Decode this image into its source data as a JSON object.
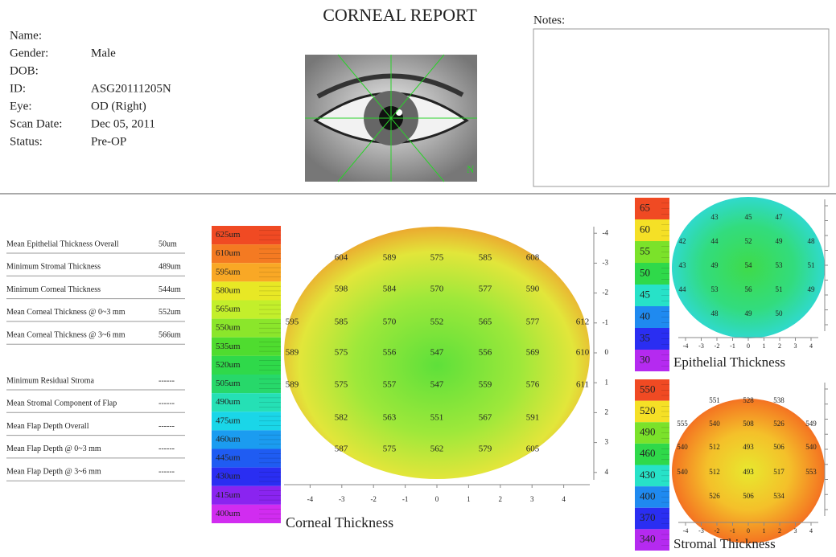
{
  "header": {
    "title": "CORNEAL REPORT",
    "notes_label": "Notes:"
  },
  "patient": [
    {
      "label": "Name:"
    },
    {
      "label": "Gender:",
      "value": "Male"
    },
    {
      "label": "DOB:"
    },
    {
      "label": "ID:",
      "value": "ASG20111205N"
    },
    {
      "label": "Eye:",
      "value": "OD (Right)"
    },
    {
      "label": "Scan Date:",
      "value": "Dec 05, 2011"
    },
    {
      "label": "Status:",
      "value": "Pre-OP"
    }
  ],
  "image": {
    "label": "N"
  },
  "measurements": [
    {
      "label": "Mean Epithelial Thickness Overall",
      "value": "50um"
    },
    {
      "label": "Minimum Stromal Thickness",
      "value": "489um"
    },
    {
      "label": "Minimum Corneal Thickness",
      "value": "544um"
    },
    {
      "label": "Mean Corneal Thickness @ 0~3 mm",
      "value": "552um"
    },
    {
      "label": "Mean Corneal Thickness @ 3~6 mm",
      "value": "566um"
    },
    {
      "label": "Minimum Residual Stroma",
      "value": "------"
    },
    {
      "label": "Mean Stromal Component of Flap",
      "value": "------"
    },
    {
      "label": "Mean Flap Depth Overall",
      "value": "------"
    },
    {
      "label": "Mean Flap Depth @ 0~3 mm",
      "value": "------"
    },
    {
      "label": "Mean Flap Depth @ 3~6 mm",
      "value": "------"
    }
  ],
  "maps": [
    {
      "title": "Corneal Thickness",
      "scale": {
        "labels": [
          "625um",
          "610um",
          "595um",
          "580um",
          "565um",
          "550um",
          "535um",
          "520um",
          "505um",
          "490um",
          "475um",
          "460um",
          "445um",
          "430um",
          "415um",
          "400um"
        ],
        "colors": [
          "#f04a23",
          "#f47a22",
          "#f9a825",
          "#e8e825",
          "#c3ef2b",
          "#8be62b",
          "#4fdc2f",
          "#2fd94a",
          "#27d86a",
          "#25e0b5",
          "#1ad6e8",
          "#1b9cf0",
          "#1f5cf2",
          "#2a2ef2",
          "#8a24f0",
          "#d12cf0"
        ]
      },
      "xticks": [
        -4,
        -3,
        -2,
        -1,
        0,
        1,
        2,
        3,
        4
      ],
      "yticks": [
        -4,
        -3,
        -2,
        -1,
        0,
        1,
        2,
        3,
        4
      ],
      "grid": [
        [
          null,
          604,
          589,
          575,
          585,
          608,
          null
        ],
        [
          null,
          598,
          584,
          570,
          577,
          590,
          null
        ],
        [
          595,
          585,
          570,
          552,
          565,
          577,
          612
        ],
        [
          589,
          575,
          556,
          547,
          556,
          569,
          610
        ],
        [
          589,
          575,
          557,
          547,
          559,
          576,
          611
        ],
        [
          null,
          582,
          563,
          551,
          567,
          591,
          null
        ],
        [
          null,
          587,
          575,
          562,
          579,
          605,
          null
        ]
      ]
    },
    {
      "title": "Epithelial Thickness",
      "scale": {
        "labels": [
          65,
          60,
          55,
          50,
          45,
          40,
          35,
          30
        ],
        "colors": [
          "#f04a23",
          "#f5e026",
          "#7be22a",
          "#2fd94a",
          "#27e2c8",
          "#1f8af0",
          "#2a2ef2",
          "#b52af0"
        ]
      },
      "xticks": [
        -4,
        -3,
        -2,
        -1,
        0,
        1,
        2,
        3,
        4
      ],
      "grid": [
        [
          null,
          43,
          45,
          47,
          null
        ],
        [
          42,
          44,
          52,
          49,
          48
        ],
        [
          43,
          49,
          54,
          53,
          51
        ],
        [
          44,
          53,
          56,
          51,
          49
        ],
        [
          null,
          48,
          49,
          50,
          null
        ]
      ]
    },
    {
      "title": "Stromal Thickness",
      "scale": {
        "labels": [
          550,
          520,
          490,
          460,
          430,
          400,
          370,
          340
        ],
        "colors": [
          "#f04a23",
          "#f5e026",
          "#7be22a",
          "#2fd94a",
          "#27e2c8",
          "#1f8af0",
          "#2a2ef2",
          "#b52af0"
        ]
      },
      "xticks": [
        -4,
        -3,
        -2,
        -1,
        0,
        1,
        2,
        3,
        4
      ],
      "grid": [
        [
          null,
          551,
          528,
          538,
          null
        ],
        [
          555,
          540,
          508,
          526,
          549
        ],
        [
          540,
          512,
          493,
          506,
          540
        ],
        [
          540,
          512,
          493,
          517,
          553
        ],
        [
          null,
          526,
          506,
          534,
          null
        ]
      ]
    }
  ]
}
